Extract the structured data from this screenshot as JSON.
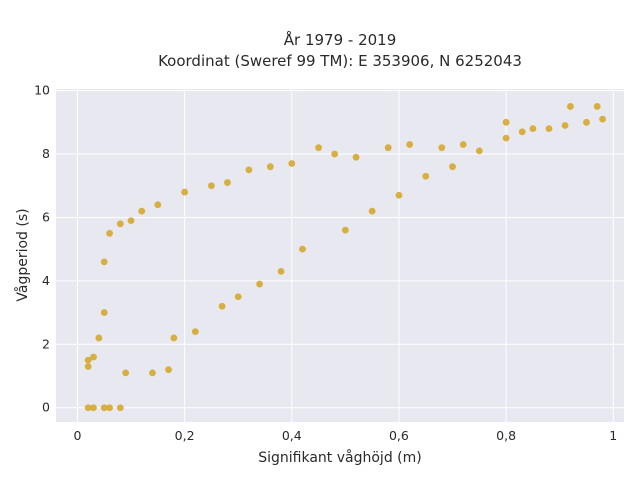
{
  "chart_data": {
    "type": "scatter",
    "title": "År 1979 - 2019",
    "subtitle": "Koordinat (Sweref 99 TM): E 353906, N 6252043",
    "xlabel": "Signifikant våghöjd (m)",
    "ylabel": "Vågperiod (s)",
    "xlim": [
      -0.04,
      1.02
    ],
    "ylim": [
      -0.45,
      10.05
    ],
    "x_ticks": [
      0,
      0.2,
      0.4,
      0.6,
      0.8,
      1
    ],
    "x_tick_labels": [
      "0",
      "0,2",
      "0,4",
      "0,6",
      "0,8",
      "1"
    ],
    "y_ticks": [
      0,
      2,
      4,
      6,
      8,
      10
    ],
    "y_tick_labels": [
      "0",
      "2",
      "4",
      "6",
      "8",
      "10"
    ],
    "grid": true,
    "marker_color": "#d4a321",
    "background_color": "#e8e8f0",
    "series": [
      {
        "points": [
          [
            0.02,
            1.3
          ],
          [
            0.02,
            1.5
          ],
          [
            0.03,
            1.6
          ],
          [
            0.04,
            2.2
          ],
          [
            0.05,
            3.0
          ],
          [
            0.05,
            4.6
          ],
          [
            0.06,
            5.5
          ],
          [
            0.08,
            5.8
          ],
          [
            0.09,
            1.1
          ],
          [
            0.1,
            5.9
          ],
          [
            0.12,
            6.2
          ],
          [
            0.14,
            1.1
          ],
          [
            0.15,
            6.4
          ],
          [
            0.17,
            1.2
          ],
          [
            0.18,
            2.2
          ],
          [
            0.2,
            6.8
          ],
          [
            0.22,
            2.4
          ],
          [
            0.25,
            7.0
          ],
          [
            0.27,
            3.2
          ],
          [
            0.28,
            7.1
          ],
          [
            0.3,
            3.5
          ],
          [
            0.32,
            7.5
          ],
          [
            0.34,
            3.9
          ],
          [
            0.36,
            7.6
          ],
          [
            0.38,
            4.3
          ],
          [
            0.4,
            7.7
          ],
          [
            0.42,
            5.0
          ],
          [
            0.45,
            8.2
          ],
          [
            0.48,
            8.0
          ],
          [
            0.5,
            5.6
          ],
          [
            0.52,
            7.9
          ],
          [
            0.55,
            6.2
          ],
          [
            0.58,
            8.2
          ],
          [
            0.6,
            6.7
          ],
          [
            0.62,
            8.3
          ],
          [
            0.65,
            7.3
          ],
          [
            0.68,
            8.2
          ],
          [
            0.7,
            7.6
          ],
          [
            0.72,
            8.3
          ],
          [
            0.75,
            8.1
          ],
          [
            0.8,
            8.5
          ],
          [
            0.8,
            9.0
          ],
          [
            0.83,
            8.7
          ],
          [
            0.85,
            8.8
          ],
          [
            0.88,
            8.8
          ],
          [
            0.91,
            8.9
          ],
          [
            0.92,
            9.5
          ],
          [
            0.95,
            9.0
          ],
          [
            0.97,
            9.5
          ],
          [
            0.98,
            9.1
          ],
          [
            0.02,
            0.0
          ],
          [
            0.03,
            0.0
          ],
          [
            0.05,
            0.0
          ],
          [
            0.06,
            0.0
          ],
          [
            0.08,
            0.0
          ]
        ]
      }
    ]
  }
}
